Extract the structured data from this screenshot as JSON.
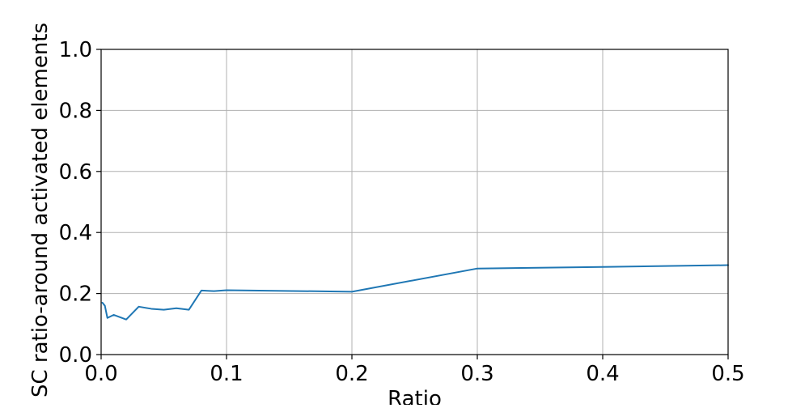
{
  "chart_data": {
    "type": "line",
    "title": "",
    "xlabel": "Ratio",
    "ylabel": "SC ratio-around activated elements",
    "xlim": [
      0.0,
      0.5
    ],
    "ylim": [
      0.0,
      1.0
    ],
    "xticks": [
      0.0,
      0.1,
      0.2,
      0.3,
      0.4,
      0.5
    ],
    "xtick_labels": [
      "0.0",
      "0.1",
      "0.2",
      "0.3",
      "0.4",
      "0.5"
    ],
    "yticks": [
      0.0,
      0.2,
      0.4,
      0.6,
      0.8,
      1.0
    ],
    "ytick_labels": [
      "0.0",
      "0.2",
      "0.4",
      "0.6",
      "0.8",
      "1.0"
    ],
    "grid": true,
    "legend": "none",
    "series": [
      {
        "color": "#1f77b4",
        "x": [
          0.001,
          0.003,
          0.005,
          0.01,
          0.02,
          0.03,
          0.04,
          0.05,
          0.06,
          0.07,
          0.08,
          0.09,
          0.1,
          0.2,
          0.3,
          0.4,
          0.5
        ],
        "y": [
          0.17,
          0.16,
          0.12,
          0.13,
          0.115,
          0.157,
          0.15,
          0.147,
          0.152,
          0.147,
          0.21,
          0.208,
          0.211,
          0.206,
          0.282,
          0.287,
          0.293
        ]
      }
    ]
  }
}
